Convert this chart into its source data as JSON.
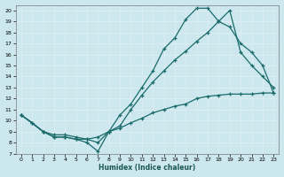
{
  "xlabel": "Humidex (Indice chaleur)",
  "bg_color": "#cce8ee",
  "grid_color": "#ddeef2",
  "line_color": "#1a6b6b",
  "xlim": [
    -0.5,
    23.5
  ],
  "ylim": [
    7,
    20.5
  ],
  "xticks": [
    0,
    1,
    2,
    3,
    4,
    5,
    6,
    7,
    8,
    9,
    10,
    11,
    12,
    13,
    14,
    15,
    16,
    17,
    18,
    19,
    20,
    21,
    22,
    23
  ],
  "yticks": [
    7,
    8,
    9,
    10,
    11,
    12,
    13,
    14,
    15,
    16,
    17,
    18,
    19,
    20
  ],
  "line1_x": [
    0,
    1,
    2,
    3,
    4,
    5,
    6,
    7,
    8,
    9,
    10,
    11,
    12,
    13,
    14,
    15,
    16,
    17,
    18,
    19,
    20,
    21,
    22,
    23
  ],
  "line1_y": [
    10.5,
    9.8,
    9.0,
    8.5,
    8.5,
    8.3,
    8.3,
    8.5,
    9.0,
    9.3,
    9.8,
    10.2,
    10.7,
    11.0,
    11.3,
    11.5,
    12.0,
    12.2,
    12.3,
    12.4,
    12.4,
    12.4,
    12.5,
    12.5
  ],
  "line2_x": [
    0,
    2,
    3,
    4,
    5,
    6,
    7,
    8,
    9,
    10,
    11,
    12,
    13,
    14,
    15,
    16,
    17,
    18,
    19,
    20,
    21,
    22,
    23
  ],
  "line2_y": [
    10.5,
    9.0,
    8.7,
    8.7,
    8.5,
    8.3,
    8.0,
    9.0,
    10.5,
    11.5,
    13.0,
    14.5,
    16.5,
    17.5,
    19.2,
    20.2,
    20.2,
    19.0,
    18.5,
    17.0,
    16.2,
    15.0,
    12.5
  ],
  "line3_x": [
    0,
    1,
    2,
    3,
    4,
    5,
    6,
    7,
    8,
    9,
    10,
    11,
    12,
    13,
    14,
    15,
    16,
    17,
    18,
    19,
    20,
    21,
    22,
    23
  ],
  "line3_y": [
    10.5,
    9.8,
    9.0,
    8.5,
    8.5,
    8.3,
    8.0,
    7.2,
    9.0,
    9.5,
    11.0,
    12.3,
    13.5,
    14.5,
    15.5,
    16.3,
    17.2,
    18.0,
    19.0,
    20.0,
    16.2,
    15.0,
    14.0,
    13.0
  ]
}
